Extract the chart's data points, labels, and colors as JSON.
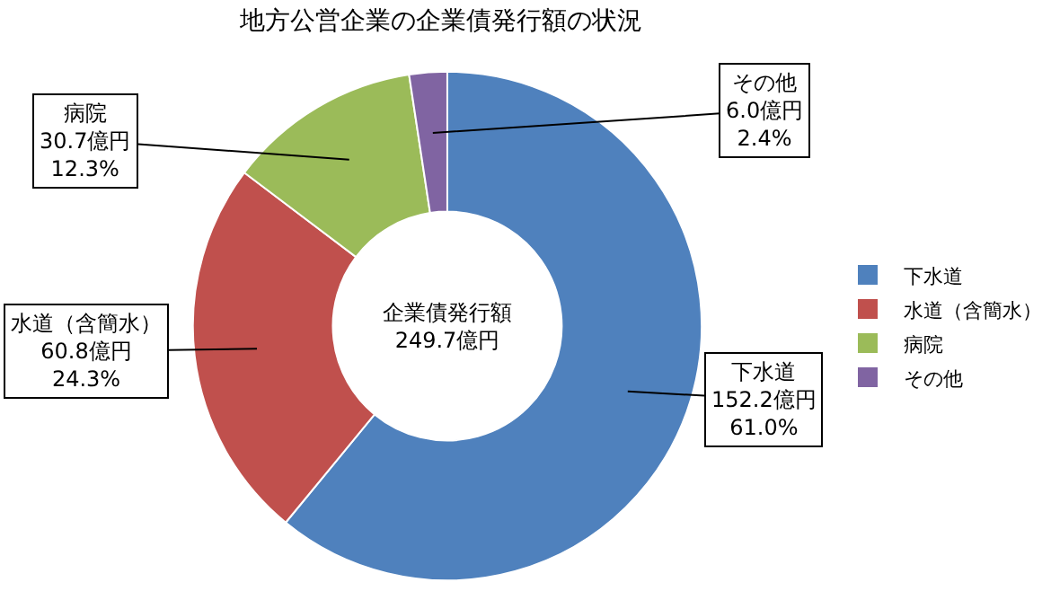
{
  "chart_data": {
    "type": "donut",
    "title": "地方公営企業の企業債発行額の状況",
    "categories": [
      "下水道",
      "水道（含簡水）",
      "病院",
      "その他"
    ],
    "values": [
      152.2,
      60.8,
      30.7,
      6.0
    ],
    "colors": [
      "#4f81bd",
      "#c0504d",
      "#9bbb59",
      "#8064a2"
    ],
    "value_labels": [
      "152.2億円\n61.0%",
      "60.8億円\n24.3%",
      "30.7億円\n12.3%",
      "6.0億円\n2.4%"
    ],
    "annotations": [
      "企業債発行額\n249.7億円"
    ],
    "legend": "right"
  }
}
